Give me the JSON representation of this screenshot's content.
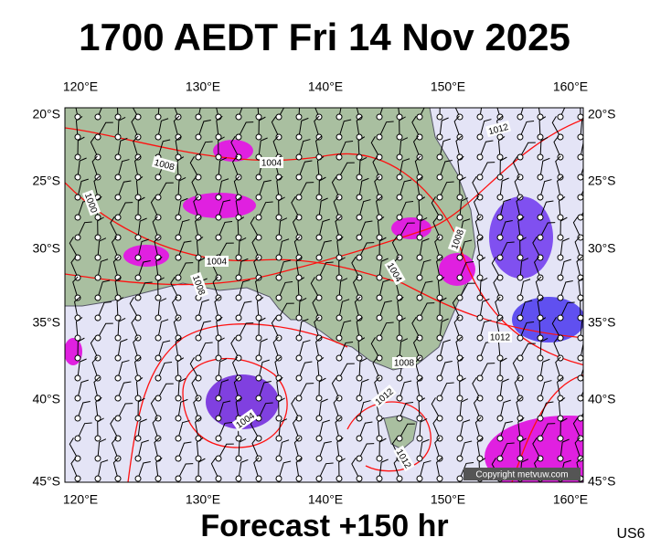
{
  "header": {
    "title": "1700 AEDT Fri 14 Nov 2025"
  },
  "map": {
    "lon_labels": [
      "120°E",
      "130°E",
      "140°E",
      "150°E",
      "160°E"
    ],
    "lat_labels": [
      "20°S",
      "25°S",
      "30°S",
      "35°S",
      "40°S",
      "45°S"
    ],
    "isobar_labels": [
      "1004",
      "1008",
      "1000",
      "1004",
      "1008",
      "1012",
      "1008",
      "1004",
      "1012",
      "1008",
      "1012",
      "1004",
      "1012"
    ],
    "copyright": "Copyright metvuw.com"
  },
  "footer": {
    "forecast": "Forecast +150 hr",
    "code": "US6"
  }
}
